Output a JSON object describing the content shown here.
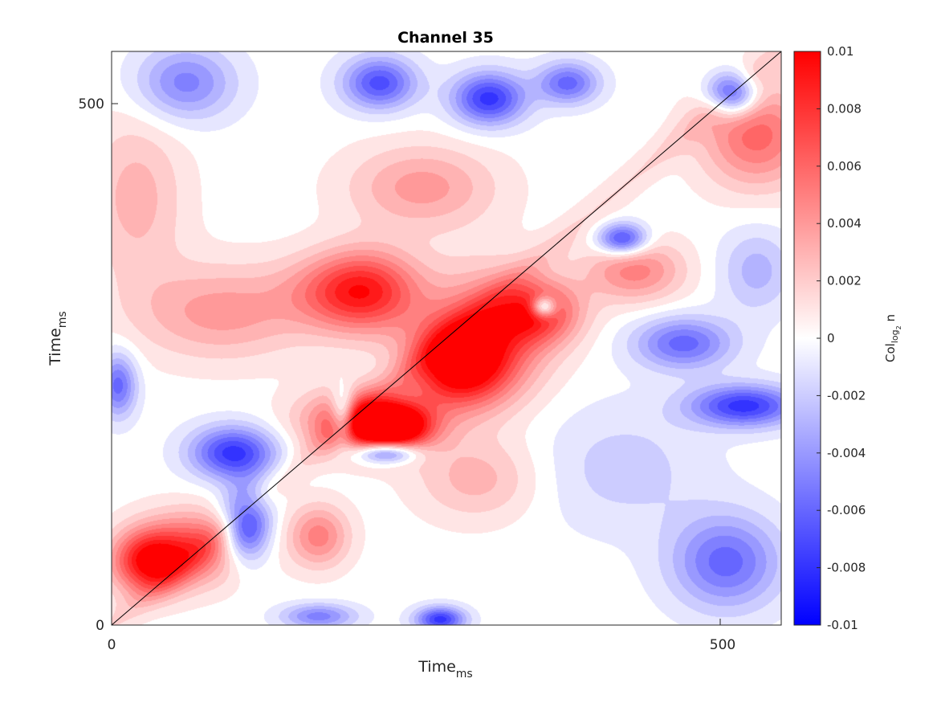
{
  "chart_data": {
    "type": "heatmap",
    "title": "Channel 35",
    "xlabel": {
      "main": "Time",
      "sub": "ms"
    },
    "ylabel": {
      "main": "Time",
      "sub": "ms"
    },
    "xlim": [
      0,
      550
    ],
    "ylim": [
      0,
      550
    ],
    "xticks": [
      0,
      500
    ],
    "yticks": [
      0,
      500
    ],
    "diagonal_line": true,
    "colorbar": {
      "label": {
        "main": "Col",
        "sub": "log",
        "subsub": "2",
        "suffix": " n"
      },
      "range": [
        -0.01,
        0.01
      ],
      "ticks": [
        "0.01",
        "0.008",
        "0.006",
        "0.004",
        "0.002",
        "0",
        "-0.002",
        "-0.004",
        "-0.006",
        "-0.008",
        "-0.01"
      ],
      "colors": {
        "low": "#0000ff",
        "mid": "#ffffff",
        "high": "#ff0000"
      }
    },
    "blobs": [
      {
        "x": 30,
        "y": 60,
        "rx": 30,
        "ry": 30,
        "v": 0.009
      },
      {
        "x": 70,
        "y": 75,
        "rx": 45,
        "ry": 35,
        "v": 0.006
      },
      {
        "x": 100,
        "y": 165,
        "rx": 35,
        "ry": 25,
        "v": -0.008
      },
      {
        "x": 110,
        "y": 95,
        "rx": 20,
        "ry": 35,
        "v": -0.009
      },
      {
        "x": 170,
        "y": 85,
        "rx": 25,
        "ry": 30,
        "v": 0.005
      },
      {
        "x": 210,
        "y": 195,
        "rx": 50,
        "ry": 30,
        "v": 0.009
      },
      {
        "x": 210,
        "y": 320,
        "rx": 45,
        "ry": 40,
        "v": 0.007
      },
      {
        "x": 230,
        "y": 190,
        "rx": 30,
        "ry": 20,
        "v": 0.01
      },
      {
        "x": 190,
        "y": 200,
        "rx": 10,
        "ry": 25,
        "v": -0.007
      },
      {
        "x": 225,
        "y": 165,
        "rx": 25,
        "ry": 10,
        "v": -0.008
      },
      {
        "x": 285,
        "y": 250,
        "rx": 40,
        "ry": 40,
        "v": 0.01
      },
      {
        "x": 310,
        "y": 280,
        "rx": 50,
        "ry": 60,
        "v": 0.006
      },
      {
        "x": 350,
        "y": 300,
        "rx": 35,
        "ry": 30,
        "v": 0.007
      },
      {
        "x": 355,
        "y": 305,
        "rx": 10,
        "ry": 10,
        "v": -0.008
      },
      {
        "x": 470,
        "y": 270,
        "rx": 40,
        "ry": 25,
        "v": -0.006
      },
      {
        "x": 520,
        "y": 210,
        "rx": 45,
        "ry": 20,
        "v": -0.008
      },
      {
        "x": 430,
        "y": 340,
        "rx": 40,
        "ry": 30,
        "v": 0.005
      },
      {
        "x": 420,
        "y": 370,
        "rx": 20,
        "ry": 15,
        "v": -0.008
      },
      {
        "x": 530,
        "y": 470,
        "rx": 45,
        "ry": 50,
        "v": 0.006
      },
      {
        "x": 510,
        "y": 510,
        "rx": 20,
        "ry": 20,
        "v": -0.009
      },
      {
        "x": 60,
        "y": 520,
        "rx": 40,
        "ry": 35,
        "v": -0.005
      },
      {
        "x": 220,
        "y": 520,
        "rx": 30,
        "ry": 25,
        "v": -0.007
      },
      {
        "x": 310,
        "y": 505,
        "rx": 30,
        "ry": 25,
        "v": -0.008
      },
      {
        "x": 375,
        "y": 520,
        "rx": 25,
        "ry": 20,
        "v": -0.006
      },
      {
        "x": 255,
        "y": 420,
        "rx": 60,
        "ry": 40,
        "v": 0.004
      },
      {
        "x": 185,
        "y": 320,
        "rx": 50,
        "ry": 35,
        "v": 0.003
      },
      {
        "x": 90,
        "y": 300,
        "rx": 70,
        "ry": 45,
        "v": 0.004
      },
      {
        "x": 420,
        "y": 150,
        "rx": 70,
        "ry": 60,
        "v": -0.002
      },
      {
        "x": 505,
        "y": 60,
        "rx": 45,
        "ry": 45,
        "v": -0.006
      },
      {
        "x": 300,
        "y": 140,
        "rx": 50,
        "ry": 40,
        "v": 0.003
      },
      {
        "x": 20,
        "y": 410,
        "rx": 40,
        "ry": 80,
        "v": 0.003
      },
      {
        "x": 5,
        "y": 230,
        "rx": 15,
        "ry": 30,
        "v": -0.006
      },
      {
        "x": 270,
        "y": 5,
        "rx": 20,
        "ry": 12,
        "v": -0.008
      },
      {
        "x": 170,
        "y": 8,
        "rx": 30,
        "ry": 12,
        "v": -0.005
      },
      {
        "x": 530,
        "y": 340,
        "rx": 30,
        "ry": 40,
        "v": -0.003
      }
    ]
  }
}
